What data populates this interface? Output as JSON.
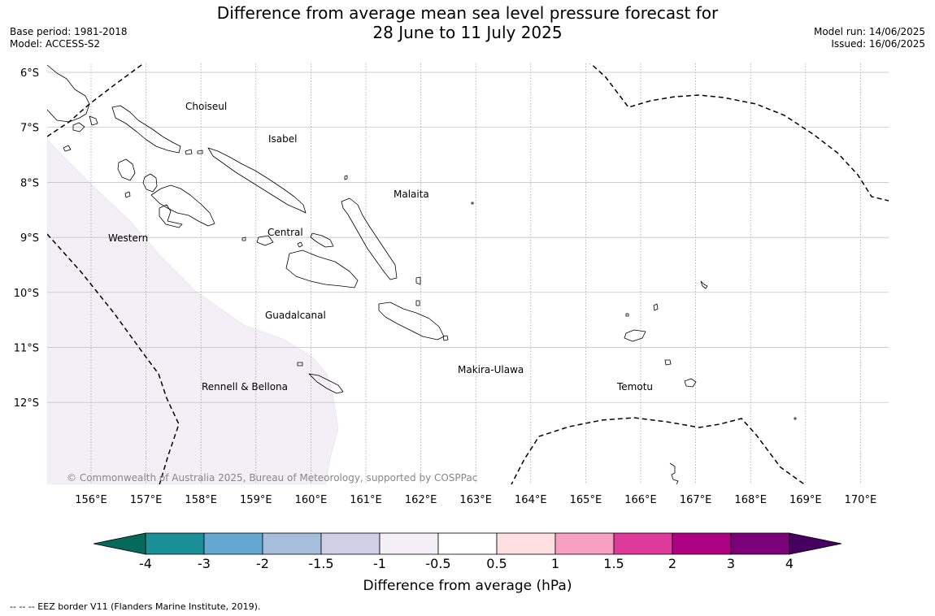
{
  "header": {
    "title_line1": "Difference from average mean sea level pressure forecast for",
    "title_line2": "28 June to 11 July 2025",
    "base_period": "Base period: 1981-2018",
    "model": "Model: ACCESS-S2",
    "model_run": "Model run: 14/06/2025",
    "issued": "Issued: 16/06/2025"
  },
  "map": {
    "lon_labels": [
      "156°E",
      "157°E",
      "158°E",
      "159°E",
      "160°E",
      "161°E",
      "162°E",
      "163°E",
      "164°E",
      "165°E",
      "166°E",
      "167°E",
      "168°E",
      "169°E",
      "170°E"
    ],
    "lat_labels": [
      "6°S",
      "7°S",
      "8°S",
      "9°S",
      "10°S",
      "11°S",
      "12°S"
    ],
    "region_labels": [
      "Choiseul",
      "Isabel",
      "Malaita",
      "Western",
      "Central",
      "Guadalcanal",
      "Makira-Ulawa",
      "Rennell & Bellona",
      "Temotu"
    ],
    "copyright": "© Commonwealth of Australia 2025, Bureau of Meteorology, supported by COSPPac",
    "anomaly_shading_color": "#f4eef6"
  },
  "colorbar": {
    "tick_labels": [
      "-4",
      "-3",
      "-2",
      "-1.5",
      "-1",
      "-0.5",
      "0.5",
      "1",
      "1.5",
      "2",
      "3",
      "4"
    ],
    "colors": [
      "#1a8f95",
      "#64a8d2",
      "#a6bddc",
      "#cfd0e6",
      "#f4eef6",
      "#ffffff",
      "#fee0e0",
      "#f8a0bf",
      "#de3a9c",
      "#ad0284",
      "#7a0177"
    ],
    "low_extend_color": "#06695c",
    "high_extend_color": "#46005f",
    "label": "Difference from average (hPa)"
  },
  "footnote": "--  --  -- EEZ border V11 (Flanders Marine Institute, 2019)."
}
